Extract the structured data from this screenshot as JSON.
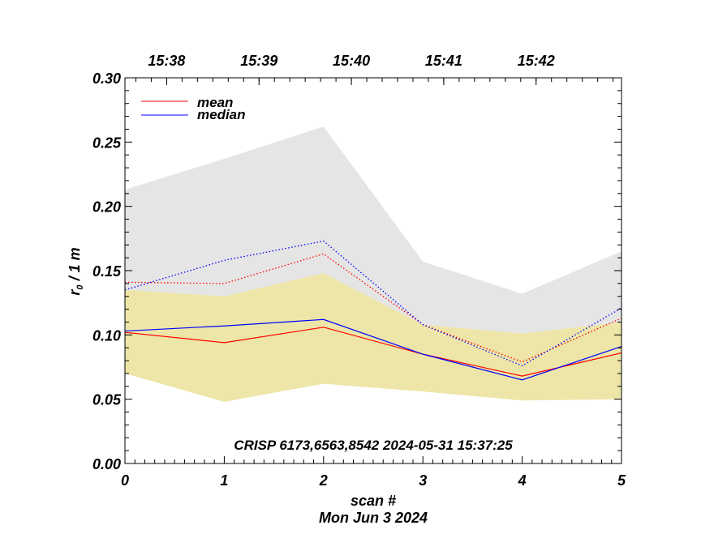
{
  "chart_data": {
    "type": "line",
    "x": [
      0,
      1,
      2,
      3,
      4,
      5
    ],
    "xlim": [
      0,
      5
    ],
    "ylim": [
      0,
      0.3
    ],
    "xlabel": "scan #",
    "date_label": "Mon Jun  3 2024",
    "ylabel": "r",
    "ylabel_sub": "0",
    "ylabel_rest": " / 1 m",
    "x_ticks": [
      "0",
      "1",
      "2",
      "3",
      "4",
      "5"
    ],
    "y_ticks": [
      "0.00",
      "0.05",
      "0.10",
      "0.15",
      "0.20",
      "0.25",
      "0.30"
    ],
    "top_axis_ticks": [
      {
        "x": 0.42,
        "label": "15:38"
      },
      {
        "x": 1.35,
        "label": "15:39"
      },
      {
        "x": 2.28,
        "label": "15:40"
      },
      {
        "x": 3.21,
        "label": "15:41"
      },
      {
        "x": 4.14,
        "label": "15:42"
      }
    ],
    "annotation": "CRISP 6173,6563,8542 2024-05-31 15:37:25",
    "legend": [
      {
        "name": "mean",
        "color": "#ff0000"
      },
      {
        "name": "median",
        "color": "#0000ff"
      }
    ],
    "bands": [
      {
        "name": "gray-range",
        "color": "#e5e5e5",
        "upper": [
          0.213,
          0.237,
          0.262,
          0.157,
          0.132,
          0.165
        ],
        "lower": [
          0.135,
          0.13,
          0.148,
          0.108,
          0.101,
          0.11
        ]
      },
      {
        "name": "yellow-range",
        "color": "#ede6a8",
        "upper": [
          0.135,
          0.13,
          0.148,
          0.108,
          0.101,
          0.11
        ],
        "lower": [
          0.07,
          0.048,
          0.062,
          0.056,
          0.049,
          0.05
        ]
      }
    ],
    "series": [
      {
        "name": "mean",
        "style": "solid",
        "color": "#ff0000",
        "values": [
          0.102,
          0.094,
          0.106,
          0.085,
          0.068,
          0.086
        ]
      },
      {
        "name": "median",
        "style": "solid",
        "color": "#0000ff",
        "values": [
          0.103,
          0.107,
          0.112,
          0.085,
          0.065,
          0.091
        ]
      },
      {
        "name": "mean",
        "style": "dotted",
        "color": "#ff0000",
        "values": [
          0.141,
          0.14,
          0.163,
          0.108,
          0.079,
          0.113
        ]
      },
      {
        "name": "median",
        "style": "dotted",
        "color": "#0000ff",
        "values": [
          0.135,
          0.158,
          0.173,
          0.108,
          0.076,
          0.121
        ]
      }
    ]
  }
}
